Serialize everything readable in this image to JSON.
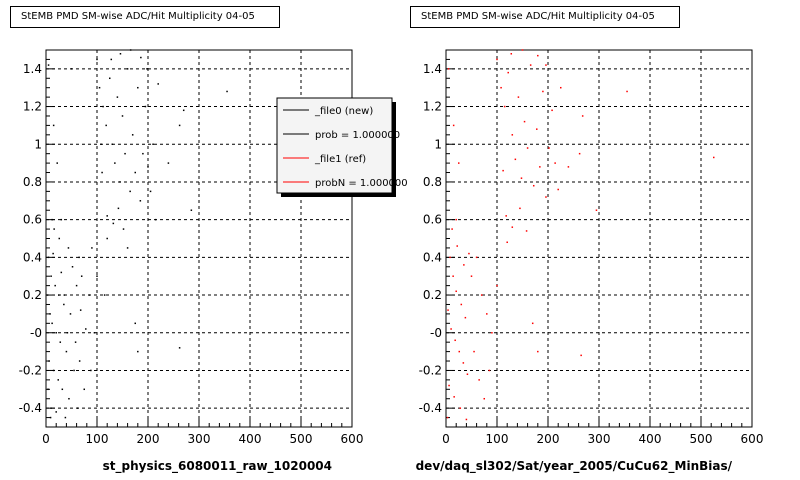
{
  "chart_data": [
    {
      "type": "scatter",
      "title": "StEMB PMD SM-wise ADC/Hit Multiplicity 04-05",
      "xlabel": "st_physics_6080011_raw_1020004",
      "ylabel": "",
      "xlim": [
        0,
        600
      ],
      "ylim": [
        -0.5,
        1.5
      ],
      "xticks": [
        0,
        100,
        200,
        300,
        400,
        500,
        600
      ],
      "yticks": [
        -0.4,
        -0.2,
        0,
        0.2,
        0.4,
        0.6,
        0.8,
        1,
        1.2,
        1.4
      ],
      "ytick_labels": [
        "-0.4",
        "-0.2",
        "-0",
        "0.2",
        "0.4",
        "0.6",
        "0.8",
        "1",
        "1.2",
        "1.4"
      ],
      "grid": true,
      "series": [
        {
          "name": "_file0 (new)",
          "color": "#000000",
          "points": [
            [
              5,
              1.42
            ],
            [
              15,
              1.1
            ],
            [
              22,
              0.9
            ],
            [
              30,
              0.6
            ],
            [
              5,
              0.4
            ],
            [
              10,
              0.3
            ],
            [
              18,
              0.25
            ],
            [
              25,
              0.2
            ],
            [
              35,
              0.15
            ],
            [
              8,
              0.1
            ],
            [
              12,
              0.05
            ],
            [
              20,
              0.0
            ],
            [
              28,
              -0.05
            ],
            [
              40,
              -0.1
            ],
            [
              6,
              -0.15
            ],
            [
              15,
              -0.2
            ],
            [
              24,
              -0.25
            ],
            [
              32,
              -0.3
            ],
            [
              45,
              -0.35
            ],
            [
              10,
              -0.4
            ],
            [
              20,
              -0.42
            ],
            [
              38,
              -0.45
            ],
            [
              55,
              -0.2
            ],
            [
              60,
              0.25
            ],
            [
              65,
              0.4
            ],
            [
              70,
              0.3
            ],
            [
              52,
              0.35
            ],
            [
              48,
              0.1
            ],
            [
              58,
              -0.05
            ],
            [
              42,
              0.0
            ],
            [
              36,
              0.2
            ],
            [
              30,
              0.32
            ],
            [
              14,
              0.42
            ],
            [
              3,
              0.2
            ],
            [
              4,
              -0.3
            ],
            [
              9,
              -0.45
            ],
            [
              62,
              -0.4
            ],
            [
              78,
              0.02
            ],
            [
              85,
              0.2
            ],
            [
              90,
              0.45
            ],
            [
              68,
              0.12
            ],
            [
              50,
              1.4
            ],
            [
              100,
              1.45
            ],
            [
              105,
              1.3
            ],
            [
              112,
              1.2
            ],
            [
              118,
              1.1
            ],
            [
              125,
              1.35
            ],
            [
              130,
              1.0
            ],
            [
              135,
              0.9
            ],
            [
              140,
              1.25
            ],
            [
              145,
              0.8
            ],
            [
              150,
              1.15
            ],
            [
              155,
              0.95
            ],
            [
              160,
              1.4
            ],
            [
              165,
              0.75
            ],
            [
              170,
              1.05
            ],
            [
              175,
              0.85
            ],
            [
              180,
              1.3
            ],
            [
              185,
              0.7
            ],
            [
              190,
              0.95
            ],
            [
              195,
              1.2
            ],
            [
              200,
              0.88
            ],
            [
              205,
              0.75
            ],
            [
              210,
              1.0
            ],
            [
              215,
              0.6
            ],
            [
              120,
              0.62
            ],
            [
              132,
              0.58
            ],
            [
              142,
              0.66
            ],
            [
              152,
              0.55
            ],
            [
              110,
              0.85
            ],
            [
              108,
              1.0
            ],
            [
              128,
              1.45
            ],
            [
              146,
              1.48
            ],
            [
              166,
              1.5
            ],
            [
              186,
              1.46
            ],
            [
              198,
              1.4
            ],
            [
              220,
              1.32
            ],
            [
              240,
              0.9
            ],
            [
              262,
              1.1
            ],
            [
              270,
              1.18
            ],
            [
              355,
              1.28
            ],
            [
              120,
              0.5
            ],
            [
              160,
              0.45
            ],
            [
              175,
              0.05
            ],
            [
              180,
              -0.1
            ],
            [
              262,
              -0.08
            ],
            [
              285,
              0.65
            ],
            [
              100,
              0.3
            ],
            [
              115,
              0.2
            ],
            [
              95,
              0.0
            ],
            [
              88,
              -0.2
            ],
            [
              75,
              -0.3
            ],
            [
              66,
              -0.15
            ],
            [
              44,
              0.45
            ],
            [
              26,
              0.5
            ],
            [
              16,
              0.55
            ],
            [
              12,
              0.6
            ]
          ]
        }
      ]
    },
    {
      "type": "scatter",
      "title": "StEMB PMD SM-wise ADC/Hit Multiplicity 04-05",
      "xlabel": "dev/daq_sl302/Sat/year_2005/CuCu62_MinBias/",
      "ylabel": "",
      "xlim": [
        0,
        600
      ],
      "ylim": [
        -0.5,
        1.5
      ],
      "xticks": [
        0,
        100,
        200,
        300,
        400,
        500,
        600
      ],
      "yticks": [
        -0.4,
        -0.2,
        0,
        0.2,
        0.4,
        0.6,
        0.8,
        1,
        1.2,
        1.4
      ],
      "ytick_labels": [
        "-0.4",
        "-0.2",
        "-0",
        "0.2",
        "0.4",
        "0.6",
        "0.8",
        "1",
        "1.2",
        "1.4"
      ],
      "grid": true,
      "series": [
        {
          "name": "_file1 (ref)",
          "color": "#ff0000",
          "points": [
            [
              5,
              1.4
            ],
            [
              15,
              1.1
            ],
            [
              25,
              0.9
            ],
            [
              8,
              0.4
            ],
            [
              14,
              0.3
            ],
            [
              20,
              0.22
            ],
            [
              30,
              0.15
            ],
            [
              38,
              0.08
            ],
            [
              10,
              0.02
            ],
            [
              18,
              -0.04
            ],
            [
              26,
              -0.1
            ],
            [
              34,
              -0.16
            ],
            [
              42,
              -0.22
            ],
            [
              6,
              -0.28
            ],
            [
              16,
              -0.34
            ],
            [
              28,
              -0.4
            ],
            [
              40,
              -0.46
            ],
            [
              50,
              0.3
            ],
            [
              60,
              0.4
            ],
            [
              70,
              0.2
            ],
            [
              80,
              0.1
            ],
            [
              55,
              -0.1
            ],
            [
              65,
              -0.25
            ],
            [
              45,
              0.42
            ],
            [
              35,
              0.36
            ],
            [
              22,
              0.46
            ],
            [
              90,
              0.0
            ],
            [
              100,
              1.45
            ],
            [
              108,
              1.3
            ],
            [
              115,
              1.2
            ],
            [
              122,
              1.38
            ],
            [
              130,
              1.05
            ],
            [
              136,
              0.92
            ],
            [
              142,
              1.25
            ],
            [
              148,
              0.82
            ],
            [
              154,
              1.12
            ],
            [
              160,
              0.98
            ],
            [
              166,
              1.42
            ],
            [
              172,
              0.78
            ],
            [
              178,
              1.08
            ],
            [
              184,
              0.88
            ],
            [
              190,
              1.28
            ],
            [
              196,
              0.72
            ],
            [
              202,
              0.98
            ],
            [
              208,
              1.18
            ],
            [
              214,
              0.9
            ],
            [
              220,
              0.76
            ],
            [
              118,
              0.62
            ],
            [
              130,
              0.56
            ],
            [
              145,
              0.66
            ],
            [
              158,
              0.54
            ],
            [
              112,
              0.86
            ],
            [
              128,
              1.48
            ],
            [
              150,
              1.5
            ],
            [
              180,
              1.47
            ],
            [
              196,
              1.42
            ],
            [
              225,
              1.3
            ],
            [
              240,
              0.88
            ],
            [
              262,
              0.95
            ],
            [
              268,
              1.15
            ],
            [
              295,
              0.65
            ],
            [
              355,
              1.28
            ],
            [
              525,
              0.93
            ],
            [
              265,
              -0.12
            ],
            [
              180,
              -0.1
            ],
            [
              170,
              0.05
            ],
            [
              120,
              0.48
            ],
            [
              100,
              0.25
            ],
            [
              85,
              -0.2
            ],
            [
              75,
              -0.35
            ],
            [
              4,
              0.12
            ],
            [
              3,
              -0.45
            ],
            [
              12,
              0.55
            ],
            [
              20,
              0.6
            ]
          ]
        }
      ]
    }
  ],
  "legend": {
    "placement": "top-right",
    "entries": [
      {
        "label": "_file0 (new)",
        "color": "#000000"
      },
      {
        "label": "prob = 1.000000",
        "color": "#000000"
      },
      {
        "label": "_file1 (ref)",
        "color": "#ff0000"
      },
      {
        "label": "probN = 1.000000",
        "color": "#ff0000"
      }
    ]
  }
}
